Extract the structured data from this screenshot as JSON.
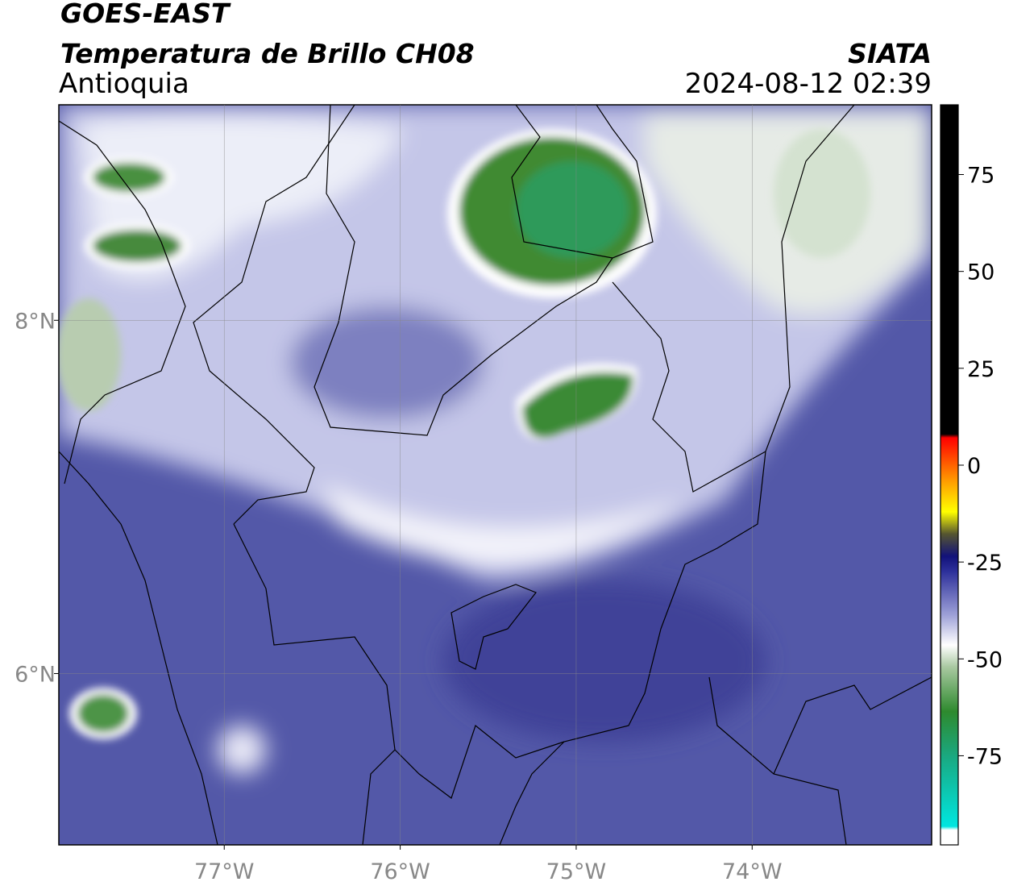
{
  "header": {
    "satellite": "GOES-EAST",
    "product": "Temperatura de Brillo CH08",
    "region": "Antioquia",
    "agency": "SIATA",
    "datetime": "2024-08-12 02:39"
  },
  "map": {
    "xlim": [
      -77.94,
      -72.98
    ],
    "ylim": [
      5.03,
      9.22
    ],
    "xticks": [
      {
        "value": -77,
        "label": "77°W"
      },
      {
        "value": -76,
        "label": "76°W"
      },
      {
        "value": -75,
        "label": "75°W"
      },
      {
        "value": -74,
        "label": "74°W"
      }
    ],
    "yticks": [
      {
        "value": 8,
        "label": "8°N"
      },
      {
        "value": 6,
        "label": "6°N"
      }
    ]
  },
  "colorbar": {
    "lim": [
      -98,
      93
    ],
    "ticks": [
      75,
      50,
      25,
      0,
      -25,
      -50,
      -75
    ]
  }
}
